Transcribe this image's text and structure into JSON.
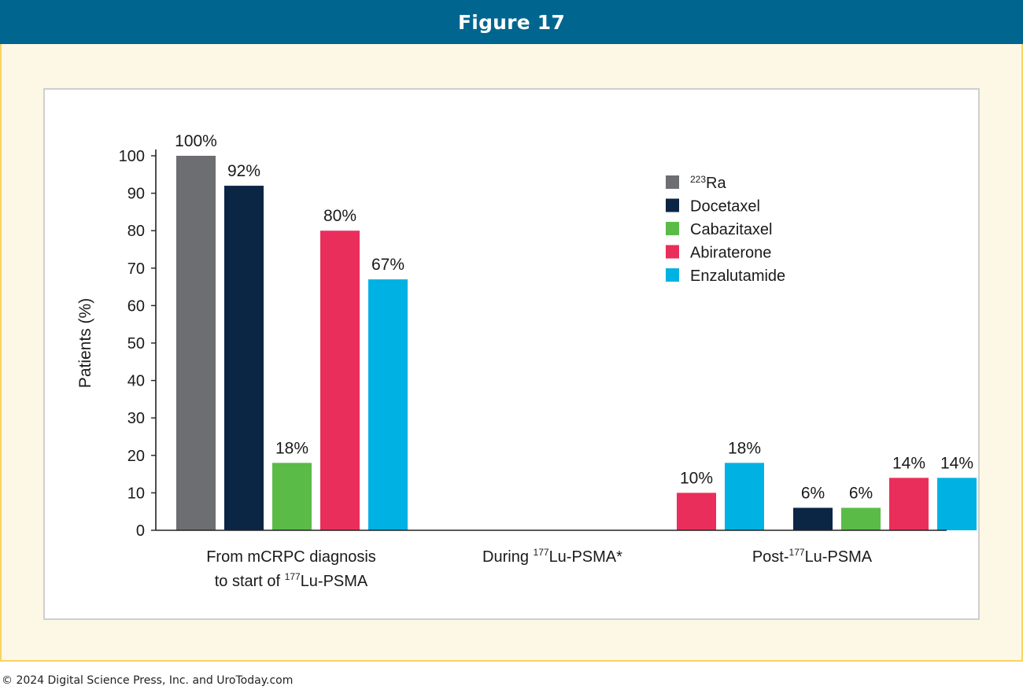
{
  "header": {
    "title": "Figure 17"
  },
  "footer": {
    "copyright": "© 2024 Digital Science Press, Inc. and UroToday.com"
  },
  "colors": {
    "header_bg": "#00668f",
    "frame_bg": "#fdf8e6",
    "frame_border": "#f6d365",
    "ra223": "#6d6e71",
    "docetaxel": "#0b2545",
    "cabazitaxel": "#5bbb47",
    "abiraterone": "#ea2e5b",
    "enzalutamide": "#00b1e3"
  },
  "chart_data": {
    "type": "bar",
    "ylabel": "Patients (%)",
    "xlabel": "",
    "ylim": [
      0,
      100
    ],
    "yticks": [
      "0",
      "10",
      "20",
      "30",
      "40",
      "50",
      "60",
      "70",
      "80",
      "90",
      "100"
    ],
    "legend_position": "top-right",
    "categories": [
      {
        "pre": "From mCRPC diagnosis",
        "line2pre": "to start of ",
        "sup": "177",
        "post": "Lu-PSMA"
      },
      {
        "pre": "During ",
        "sup": "177",
        "post": "Lu-PSMA*"
      },
      {
        "pre": "Post-",
        "sup": "177",
        "post": "Lu-PSMA"
      }
    ],
    "series": [
      {
        "name_sup": "223",
        "name": "Ra",
        "color": "#6d6e71",
        "values": [
          100,
          null,
          null
        ],
        "labels": [
          "100%",
          "",
          ""
        ]
      },
      {
        "name": "Docetaxel",
        "color": "#0b2545",
        "values": [
          92,
          null,
          6
        ],
        "labels": [
          "92%",
          "",
          "6%"
        ]
      },
      {
        "name": "Cabazitaxel",
        "color": "#5bbb47",
        "values": [
          18,
          null,
          6
        ],
        "labels": [
          "18%",
          "",
          "6%"
        ]
      },
      {
        "name": "Abiraterone",
        "color": "#ea2e5b",
        "values": [
          80,
          10,
          14
        ],
        "labels": [
          "80%",
          "10%",
          "14%"
        ]
      },
      {
        "name": "Enzalutamide",
        "color": "#00b1e3",
        "values": [
          67,
          18,
          14
        ],
        "labels": [
          "67%",
          "18%",
          "14%"
        ]
      }
    ]
  }
}
